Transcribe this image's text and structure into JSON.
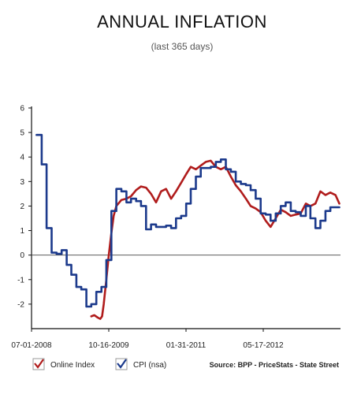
{
  "chart_data": {
    "type": "line",
    "title": "ANNUAL INFLATION",
    "subtitle": "(last 365 days)",
    "xlabel": "",
    "ylabel": "",
    "ylim": [
      -3,
      6
    ],
    "yticks": [
      -2,
      -1,
      0,
      1,
      2,
      3,
      4,
      5,
      6
    ],
    "xlim": [
      "2008-07-01",
      "2013-09-01"
    ],
    "xticks": [
      "07-01-2008",
      "10-16-2009",
      "01-31-2011",
      "05-17-2012"
    ],
    "grid": false,
    "zero_line": true,
    "legend_position": "bottom-left",
    "source": "Source: BPP - PriceStats - State Street",
    "series": [
      {
        "name": "Online Index",
        "color": "#b01c1c",
        "style": "smooth",
        "points": [
          [
            "2009-07-01",
            -2.5
          ],
          [
            "2009-07-20",
            -2.45
          ],
          [
            "2009-08-10",
            -2.55
          ],
          [
            "2009-08-25",
            -2.6
          ],
          [
            "2009-09-05",
            -2.5
          ],
          [
            "2009-09-15",
            -2.0
          ],
          [
            "2009-10-01",
            -1.0
          ],
          [
            "2009-10-16",
            0.0
          ],
          [
            "2009-11-01",
            0.9
          ],
          [
            "2009-11-15",
            1.6
          ],
          [
            "2009-12-01",
            2.0
          ],
          [
            "2010-01-01",
            2.25
          ],
          [
            "2010-02-01",
            2.3
          ],
          [
            "2010-03-01",
            2.4
          ],
          [
            "2010-04-01",
            2.65
          ],
          [
            "2010-05-01",
            2.8
          ],
          [
            "2010-06-01",
            2.75
          ],
          [
            "2010-07-01",
            2.5
          ],
          [
            "2010-08-01",
            2.15
          ],
          [
            "2010-09-01",
            2.6
          ],
          [
            "2010-10-01",
            2.7
          ],
          [
            "2010-11-01",
            2.3
          ],
          [
            "2010-12-01",
            2.6
          ],
          [
            "2011-01-01",
            2.95
          ],
          [
            "2011-02-01",
            3.3
          ],
          [
            "2011-03-01",
            3.6
          ],
          [
            "2011-04-01",
            3.5
          ],
          [
            "2011-05-01",
            3.65
          ],
          [
            "2011-06-01",
            3.8
          ],
          [
            "2011-07-01",
            3.85
          ],
          [
            "2011-08-01",
            3.6
          ],
          [
            "2011-09-01",
            3.5
          ],
          [
            "2011-10-01",
            3.6
          ],
          [
            "2011-11-01",
            3.2
          ],
          [
            "2011-12-01",
            2.85
          ],
          [
            "2012-01-01",
            2.6
          ],
          [
            "2012-02-01",
            2.3
          ],
          [
            "2012-03-01",
            2.0
          ],
          [
            "2012-04-01",
            1.9
          ],
          [
            "2012-05-01",
            1.75
          ],
          [
            "2012-06-01",
            1.4
          ],
          [
            "2012-07-01",
            1.15
          ],
          [
            "2012-08-01",
            1.5
          ],
          [
            "2012-09-01",
            1.85
          ],
          [
            "2012-10-01",
            1.75
          ],
          [
            "2012-11-01",
            1.6
          ],
          [
            "2012-12-01",
            1.65
          ],
          [
            "2013-01-01",
            1.7
          ],
          [
            "2013-02-01",
            2.1
          ],
          [
            "2013-03-01",
            2.0
          ],
          [
            "2013-04-01",
            2.1
          ],
          [
            "2013-05-01",
            2.6
          ],
          [
            "2013-06-01",
            2.45
          ],
          [
            "2013-07-01",
            2.55
          ],
          [
            "2013-08-01",
            2.45
          ],
          [
            "2013-08-25",
            2.1
          ]
        ]
      },
      {
        "name": "CPI (nsa)",
        "color": "#1c3a8c",
        "style": "step",
        "points": [
          [
            "2008-08-01",
            4.9
          ],
          [
            "2008-09-01",
            3.7
          ],
          [
            "2008-10-01",
            1.1
          ],
          [
            "2008-11-01",
            0.1
          ],
          [
            "2008-12-01",
            0.05
          ],
          [
            "2009-01-01",
            0.2
          ],
          [
            "2009-02-01",
            -0.4
          ],
          [
            "2009-03-01",
            -0.8
          ],
          [
            "2009-04-01",
            -1.3
          ],
          [
            "2009-05-01",
            -1.4
          ],
          [
            "2009-06-01",
            -2.1
          ],
          [
            "2009-07-01",
            -2.0
          ],
          [
            "2009-08-01",
            -1.5
          ],
          [
            "2009-09-01",
            -1.3
          ],
          [
            "2009-10-01",
            -0.2
          ],
          [
            "2009-11-01",
            1.8
          ],
          [
            "2009-12-01",
            2.7
          ],
          [
            "2010-01-01",
            2.6
          ],
          [
            "2010-02-01",
            2.15
          ],
          [
            "2010-03-01",
            2.3
          ],
          [
            "2010-04-01",
            2.2
          ],
          [
            "2010-05-01",
            2.0
          ],
          [
            "2010-06-01",
            1.05
          ],
          [
            "2010-07-01",
            1.25
          ],
          [
            "2010-08-01",
            1.15
          ],
          [
            "2010-09-01",
            1.15
          ],
          [
            "2010-10-01",
            1.2
          ],
          [
            "2010-11-01",
            1.1
          ],
          [
            "2010-12-01",
            1.5
          ],
          [
            "2011-01-01",
            1.6
          ],
          [
            "2011-02-01",
            2.1
          ],
          [
            "2011-03-01",
            2.7
          ],
          [
            "2011-04-01",
            3.2
          ],
          [
            "2011-05-01",
            3.55
          ],
          [
            "2011-06-01",
            3.55
          ],
          [
            "2011-07-01",
            3.6
          ],
          [
            "2011-08-01",
            3.8
          ],
          [
            "2011-09-01",
            3.9
          ],
          [
            "2011-10-01",
            3.5
          ],
          [
            "2011-11-01",
            3.4
          ],
          [
            "2011-12-01",
            3.0
          ],
          [
            "2012-01-01",
            2.9
          ],
          [
            "2012-02-01",
            2.85
          ],
          [
            "2012-03-01",
            2.65
          ],
          [
            "2012-04-01",
            2.3
          ],
          [
            "2012-05-01",
            1.7
          ],
          [
            "2012-06-01",
            1.65
          ],
          [
            "2012-07-01",
            1.4
          ],
          [
            "2012-08-01",
            1.7
          ],
          [
            "2012-09-01",
            2.0
          ],
          [
            "2012-10-01",
            2.15
          ],
          [
            "2012-11-01",
            1.8
          ],
          [
            "2012-12-01",
            1.75
          ],
          [
            "2013-01-01",
            1.6
          ],
          [
            "2013-02-01",
            2.0
          ],
          [
            "2013-03-01",
            1.5
          ],
          [
            "2013-04-01",
            1.1
          ],
          [
            "2013-05-01",
            1.4
          ],
          [
            "2013-06-01",
            1.8
          ],
          [
            "2013-07-01",
            1.95
          ]
        ],
        "last_date": "2013-08-25"
      }
    ]
  }
}
